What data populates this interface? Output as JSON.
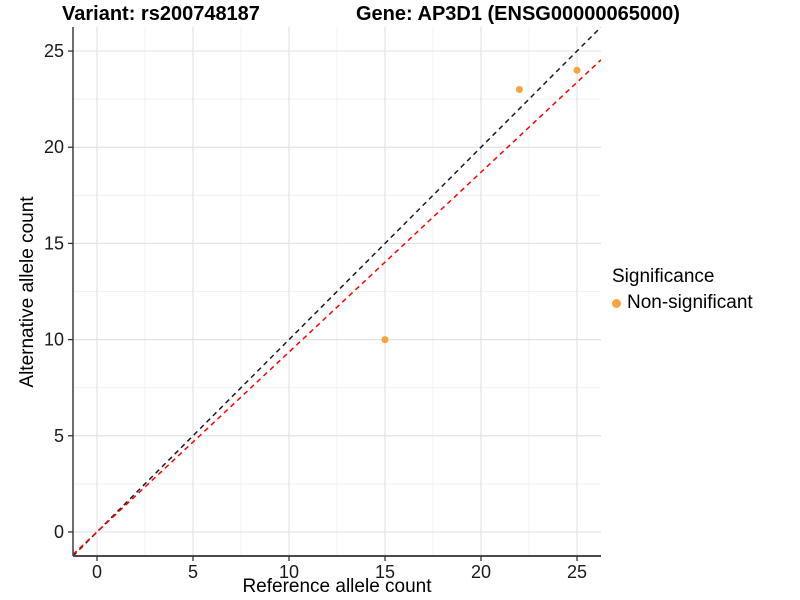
{
  "chart_data": {
    "type": "scatter",
    "title_left": "Variant: rs200748187",
    "title_right": "Gene: AP3D1 (ENSG00000065000)",
    "xlabel": "Reference allele count",
    "ylabel": "Alternative allele count",
    "xlim": [
      -1.25,
      26.25
    ],
    "ylim": [
      -1.25,
      26.25
    ],
    "x_ticks": [
      0,
      5,
      10,
      15,
      20,
      25
    ],
    "y_ticks": [
      0,
      5,
      10,
      15,
      20,
      25
    ],
    "x_minor_ticks": [
      2.5,
      7.5,
      12.5,
      17.5,
      22.5
    ],
    "y_minor_ticks": [
      2.5,
      7.5,
      12.5,
      17.5,
      22.5
    ],
    "grid": true,
    "points": [
      {
        "x": 15,
        "y": 10,
        "series": "Non-significant"
      },
      {
        "x": 22,
        "y": 23,
        "series": "Non-significant"
      },
      {
        "x": 25,
        "y": 24,
        "series": "Non-significant"
      }
    ],
    "reference_lines": [
      {
        "name": "identity-line",
        "slope": 1,
        "intercept": 0,
        "color": "#1a1a1a",
        "style": "dashed"
      },
      {
        "name": "expected-ratio-line",
        "slope": 0.935,
        "intercept": 0,
        "color": "#ff0000",
        "style": "dashed"
      }
    ],
    "legend": {
      "title": "Significance",
      "position": "right",
      "items": [
        {
          "label": "Non-significant",
          "color": "#f9a43b"
        }
      ]
    },
    "colors": {
      "point": "#f9a43b",
      "grid_major": "#e3e3e3",
      "grid_minor": "#f0f0f0",
      "axis_line": "#4a4a4a",
      "tick_mark": "#333333",
      "tick_label": "#1a1a1a",
      "background": "#ffffff"
    }
  }
}
